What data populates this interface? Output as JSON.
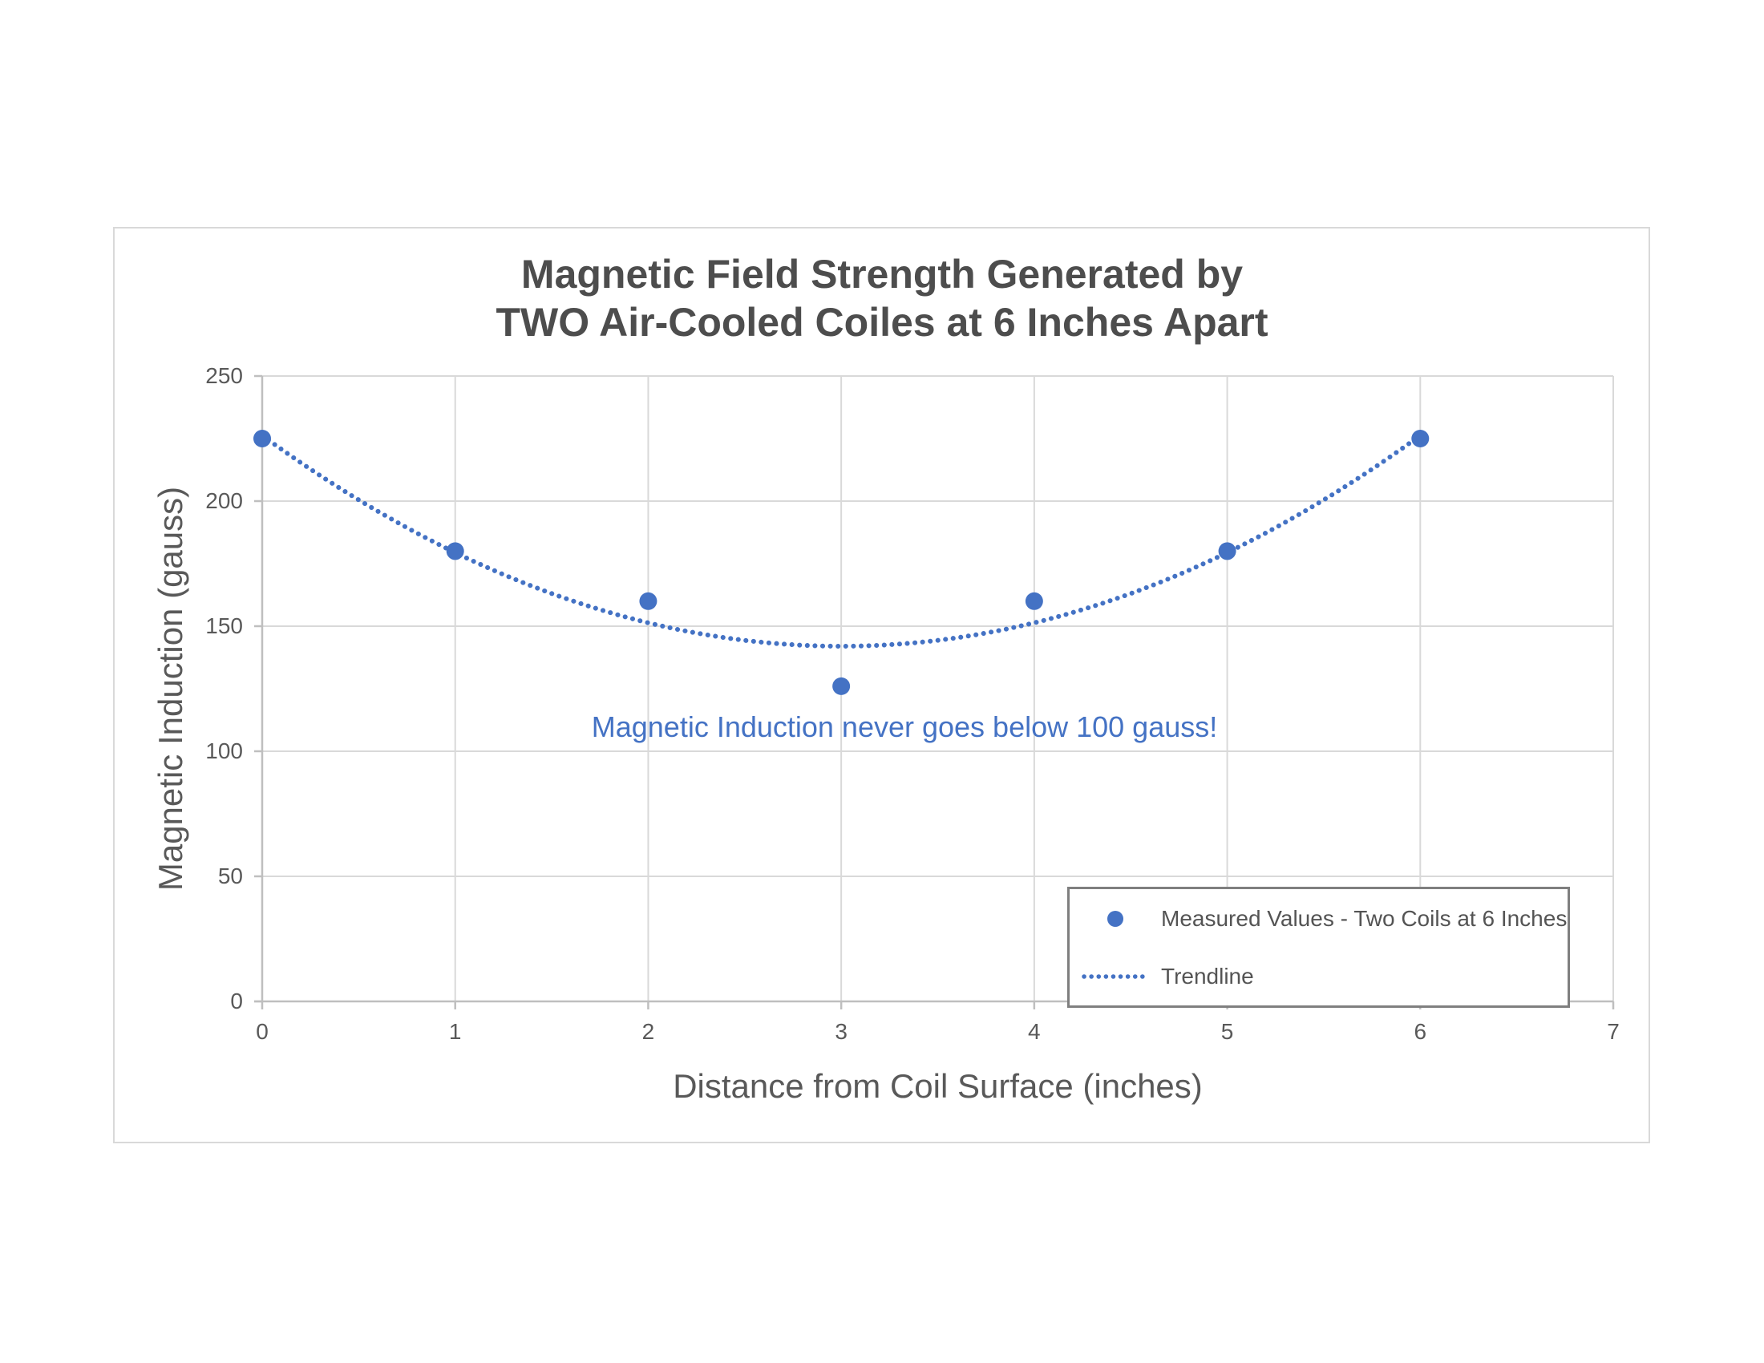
{
  "chart": {
    "title_line1": "Magnetic Field Strength Generated by",
    "title_line2": "TWO Air-Cooled Coiles at 6 Inches Apart",
    "x_axis_title": "Distance from Coil Surface (inches)",
    "y_axis_title": "Magnetic Induction (gauss)",
    "annotation_text": "Magnetic Induction never goes below 100 gauss!"
  },
  "legend": {
    "items": [
      {
        "label": "Measured Values - Two Coils at 6 Inches",
        "marker": "dot"
      },
      {
        "label": "Trendline",
        "marker": "dotted-line"
      }
    ]
  },
  "colors": {
    "accent": "#4472C4",
    "text_gray": "#595959",
    "gridline": "#D9D9D9",
    "axis_line": "#BFBFBF",
    "legend_border": "#7F7F7F",
    "panel_border": "#D9D9D9"
  },
  "chart_data": {
    "type": "scatter",
    "title": "Magnetic Field Strength Generated by TWO Air-Cooled Coiles at 6 Inches Apart",
    "xlabel": "Distance from Coil Surface (inches)",
    "ylabel": "Magnetic Induction (gauss)",
    "x": [
      0,
      1,
      2,
      3,
      4,
      5,
      6
    ],
    "series": [
      {
        "name": "Measured Values - Two Coils at 6 Inches",
        "values": [
          225,
          180,
          160,
          126,
          160,
          180,
          225
        ]
      }
    ],
    "trendline": {
      "name": "Trendline",
      "kind": "polynomial-order-2",
      "equation": "y = 9.357*(x-3)^2 + 142",
      "a": 9.357,
      "vertex_x": 3,
      "vertex_y": 142,
      "x_start": 0,
      "x_end": 6
    },
    "xlim": [
      0,
      7
    ],
    "ylim": [
      0,
      250
    ],
    "x_ticks": [
      0,
      1,
      2,
      3,
      4,
      5,
      6,
      7
    ],
    "y_ticks": [
      0,
      50,
      100,
      150,
      200,
      250
    ],
    "grid": true,
    "legend_position": "inside bottom-right",
    "annotation": {
      "text": "Magnetic Induction never goes below 100 gauss!",
      "approx_x": 3.3,
      "approx_y": 113
    }
  }
}
